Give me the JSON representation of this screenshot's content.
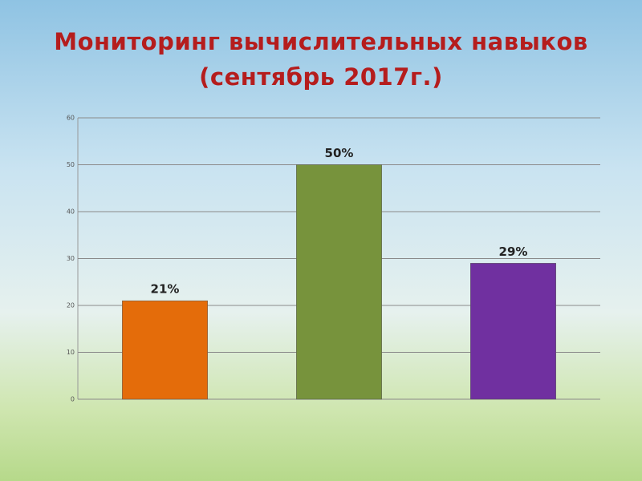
{
  "chart_data": {
    "type": "bar",
    "title": "Мониторинг вычислительных навыков (сентябрь 2017г.)",
    "categories": [
      null,
      null,
      null
    ],
    "values": [
      21,
      50,
      29
    ],
    "value_labels": [
      "21%",
      "50%",
      "29%"
    ],
    "colors": [
      "#e46c0a",
      "#77933c",
      "#7030a0"
    ],
    "ylim": [
      0,
      60
    ],
    "yticks": [
      0,
      10,
      20,
      30,
      40,
      50,
      60
    ],
    "grid": true
  }
}
